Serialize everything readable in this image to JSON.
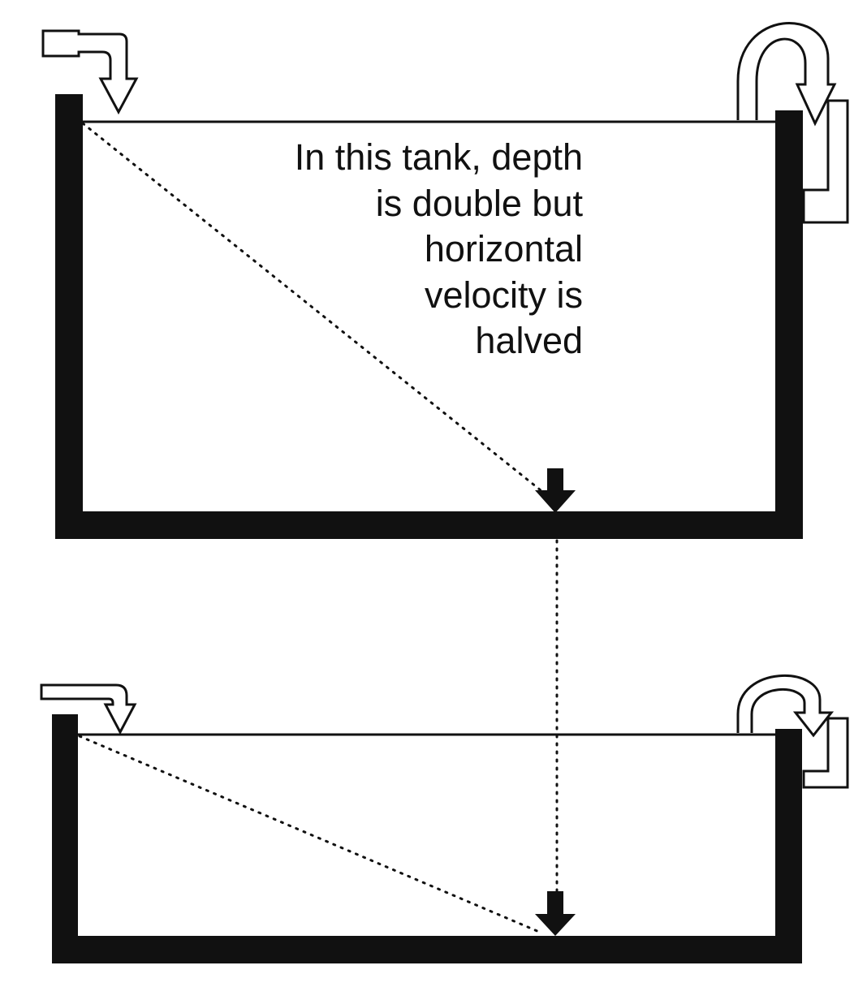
{
  "caption": "In this tank, depth\nis double but\nhorizontal\nvelocity is\nhalved",
  "colors": {
    "ink": "#111111",
    "background": "#ffffff"
  },
  "icons": [
    "inlet-bent-arrow-icon",
    "outlet-loop-arrow-icon",
    "settling-down-arrow-icon"
  ]
}
